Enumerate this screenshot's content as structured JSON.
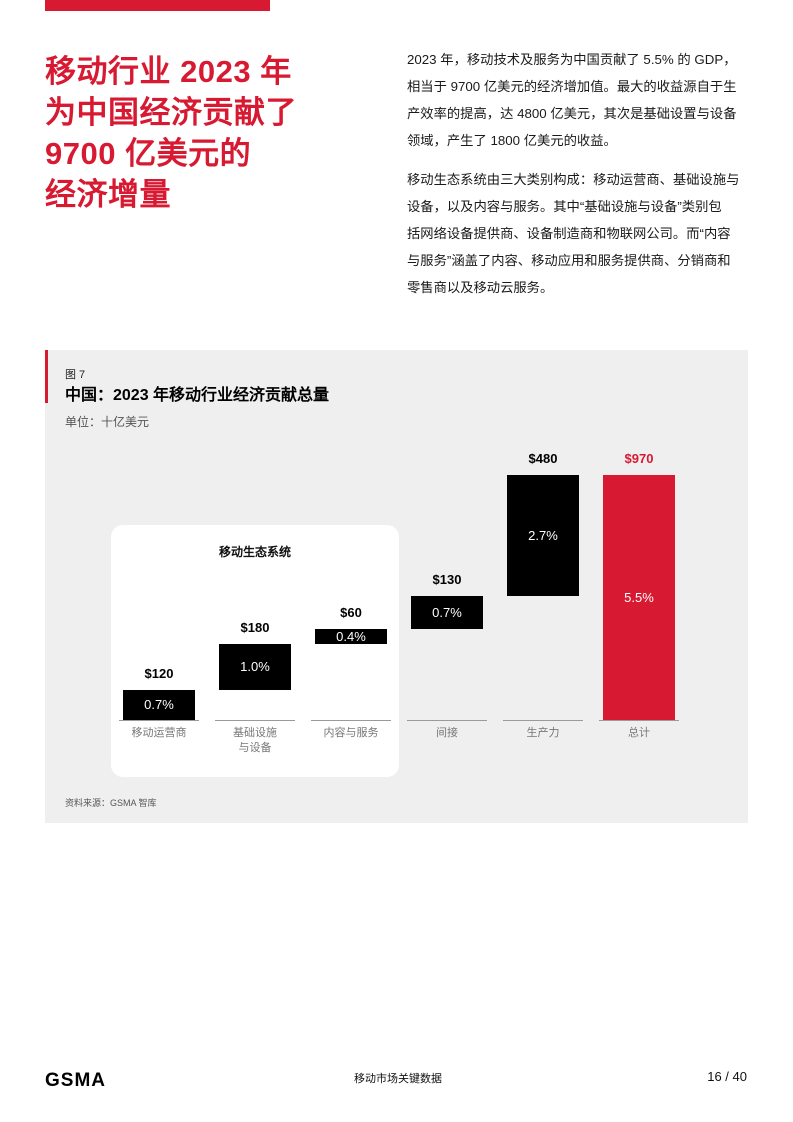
{
  "header": {
    "accent_color": "#d71932"
  },
  "headline": {
    "lines": [
      "移动行业 2023 年",
      "为中国经济贡献了",
      "9700 亿美元的",
      "经济增量"
    ]
  },
  "body": {
    "paragraphs": [
      {
        "lines": [
          "2023 年，移动技术及服务为中国贡献了 5.5% 的 GDP，",
          "相当于 9700 亿美元的经济增加值。最大的收益源自于生",
          "产效率的提高，达 4800 亿美元，其次是基础设置与设备",
          "领域，产生了 1800 亿美元的收益。"
        ]
      },
      {
        "lines": [
          "移动生态系统由三大类别构成：移动运营商、基础设施与",
          "设备，以及内容与服务。其中“基础设施与设备”类别包",
          "括网络设备提供商、设备制造商和物联网公司。而“内容",
          "与服务”涵盖了内容、移动应用和服务提供商、分销商和",
          "零售商以及移动云服务。"
        ]
      }
    ]
  },
  "figure": {
    "label": "图 7",
    "title": "中国：2023 年移动行业经济贡献总量",
    "unit": "单位：十亿美元",
    "ecosystem_label": "移动生态系统",
    "source": "资料来源：GSMA 智库"
  },
  "chart_data": {
    "type": "bar",
    "subtype": "waterfall",
    "title": "中国：2023 年移动行业经济贡献总量",
    "ylabel": "十亿美元",
    "xlabel": "",
    "categories": [
      "移动运营商",
      "基础设施\n与设备",
      "内容与服务",
      "间接",
      "生产力",
      "总计"
    ],
    "values": [
      120,
      180,
      60,
      130,
      480,
      970
    ],
    "value_labels": [
      "$120",
      "$180",
      "$60",
      "$130",
      "$480",
      "$970"
    ],
    "gdp_share": [
      "0.7%",
      "1.0%",
      "0.4%",
      "0.7%",
      "2.7%",
      "5.5%"
    ],
    "is_total": [
      false,
      false,
      false,
      false,
      false,
      true
    ],
    "bar_colors": [
      "#000000",
      "#000000",
      "#000000",
      "#000000",
      "#000000",
      "#d71932"
    ],
    "label_colors": [
      "#000000",
      "#000000",
      "#000000",
      "#000000",
      "#000000",
      "#d71932"
    ],
    "group_annotation": {
      "label": "移动生态系统",
      "categories": [
        "移动运营商",
        "基础设施\n与设备",
        "内容与服务"
      ]
    },
    "ylim": [
      0,
      970
    ],
    "grid": false,
    "legend": null
  },
  "footer": {
    "logo": "GSMA",
    "section_title": "移动市场关键数据",
    "page": "16 / 40"
  }
}
